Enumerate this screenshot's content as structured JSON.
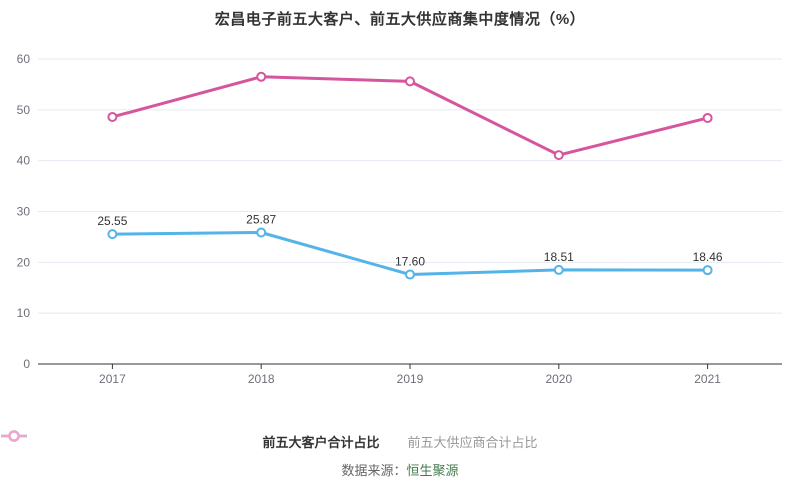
{
  "chart_title": "宏昌电子前五大客户、前五大供应商集中度情况（%）",
  "chart_data": {
    "type": "line",
    "title": "宏昌电子前五大客户、前五大供应商集中度情况（%）",
    "categories": [
      "2017",
      "2018",
      "2019",
      "2020",
      "2021"
    ],
    "series": [
      {
        "name": "前五大客户合计占比",
        "values": [
          25.55,
          25.87,
          17.6,
          18.51,
          18.46
        ],
        "labels": [
          "25.55",
          "25.87",
          "17.60",
          "18.51",
          "18.46"
        ],
        "color": "#54b4e9",
        "show_labels": true
      },
      {
        "name": "前五大供应商合计占比",
        "values": [
          48.6,
          56.5,
          55.6,
          41.1,
          48.4
        ],
        "labels": [],
        "color": "#d5569d",
        "show_labels": false
      }
    ],
    "xlabel": "",
    "ylabel": "",
    "ylim": [
      0,
      60
    ],
    "yticks": [
      0,
      10,
      20,
      30,
      40,
      50,
      60
    ],
    "grid": true,
    "legend_position": "bottom"
  },
  "colors": {
    "grid": "#e4eaf3",
    "axis": "#333333",
    "tick_text": "#6e7079",
    "label_text": "#333333"
  },
  "legend": {
    "items": [
      {
        "label": "前五大客户合计占比",
        "marker_color": "#54b4e9",
        "text_color": "#333333",
        "bold": true
      },
      {
        "label": "前五大供应商合计占比",
        "marker_color": "#eda6cc",
        "text_color": "#999999",
        "bold": false
      }
    ]
  },
  "footer": {
    "prefix": "数据来源：",
    "source": "恒生聚源",
    "source_color": "#457a4e"
  }
}
